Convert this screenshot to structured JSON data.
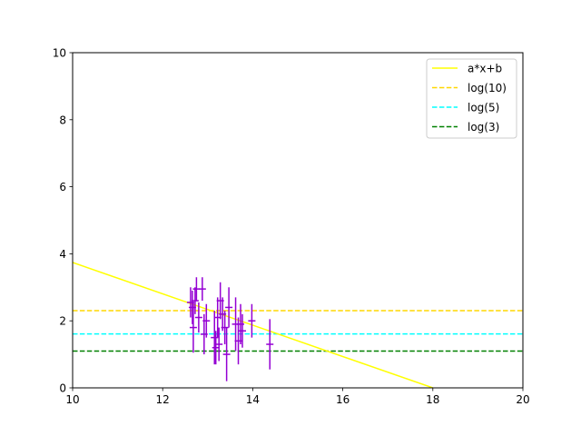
{
  "chart_data": {
    "type": "scatter",
    "xlim": [
      10,
      20
    ],
    "ylim": [
      0,
      10
    ],
    "x_ticks": [
      10,
      12,
      14,
      16,
      18,
      20
    ],
    "y_ticks": [
      0,
      2,
      4,
      6,
      8,
      10
    ],
    "grid": false,
    "legend_position": "top-right",
    "legend": [
      {
        "label": "a*x+b",
        "color": "#ffff00",
        "style": "solid"
      },
      {
        "label": "log(10)",
        "color": "#ffd700",
        "style": "dashed"
      },
      {
        "label": "log(5)",
        "color": "#00ffff",
        "style": "dashed"
      },
      {
        "label": "log(3)",
        "color": "#008000",
        "style": "dashed"
      }
    ],
    "fit_line": {
      "x": [
        10,
        18
      ],
      "y": [
        3.74,
        0.0
      ],
      "color": "#ffff00"
    },
    "hlines": [
      {
        "y": 2.303,
        "color": "#ffd700"
      },
      {
        "y": 1.609,
        "color": "#00ffff"
      },
      {
        "y": 1.099,
        "color": "#008000"
      }
    ],
    "errorbar_series": {
      "color": "#9400d3",
      "points": [
        {
          "x": 12.62,
          "y": 2.55,
          "yerr": 0.45
        },
        {
          "x": 12.66,
          "y": 2.4,
          "yerr": 0.5
        },
        {
          "x": 12.68,
          "y": 1.8,
          "yerr": 0.75
        },
        {
          "x": 12.72,
          "y": 2.6,
          "yerr": 0.4
        },
        {
          "x": 12.75,
          "y": 2.95,
          "yerr": 0.35
        },
        {
          "x": 12.8,
          "y": 2.1,
          "yerr": 0.45
        },
        {
          "x": 12.88,
          "y": 2.95,
          "yerr": 0.35
        },
        {
          "x": 12.92,
          "y": 1.6,
          "yerr": 0.6
        },
        {
          "x": 12.97,
          "y": 2.0,
          "yerr": 0.5
        },
        {
          "x": 13.15,
          "y": 1.5,
          "yerr": 0.8
        },
        {
          "x": 13.18,
          "y": 1.2,
          "yerr": 0.5
        },
        {
          "x": 13.22,
          "y": 2.1,
          "yerr": 0.6
        },
        {
          "x": 13.25,
          "y": 1.3,
          "yerr": 0.5
        },
        {
          "x": 13.28,
          "y": 2.6,
          "yerr": 0.55
        },
        {
          "x": 13.33,
          "y": 2.2,
          "yerr": 0.5
        },
        {
          "x": 13.38,
          "y": 1.8,
          "yerr": 0.5
        },
        {
          "x": 13.42,
          "y": 1.0,
          "yerr": 0.8
        },
        {
          "x": 13.47,
          "y": 2.4,
          "yerr": 0.6
        },
        {
          "x": 13.62,
          "y": 1.9,
          "yerr": 0.8
        },
        {
          "x": 13.68,
          "y": 1.4,
          "yerr": 0.7
        },
        {
          "x": 13.73,
          "y": 1.9,
          "yerr": 0.6
        },
        {
          "x": 13.77,
          "y": 1.7,
          "yerr": 0.5
        },
        {
          "x": 13.98,
          "y": 2.0,
          "yerr": 0.5
        },
        {
          "x": 14.38,
          "y": 1.3,
          "yerr": 0.75
        }
      ]
    }
  }
}
